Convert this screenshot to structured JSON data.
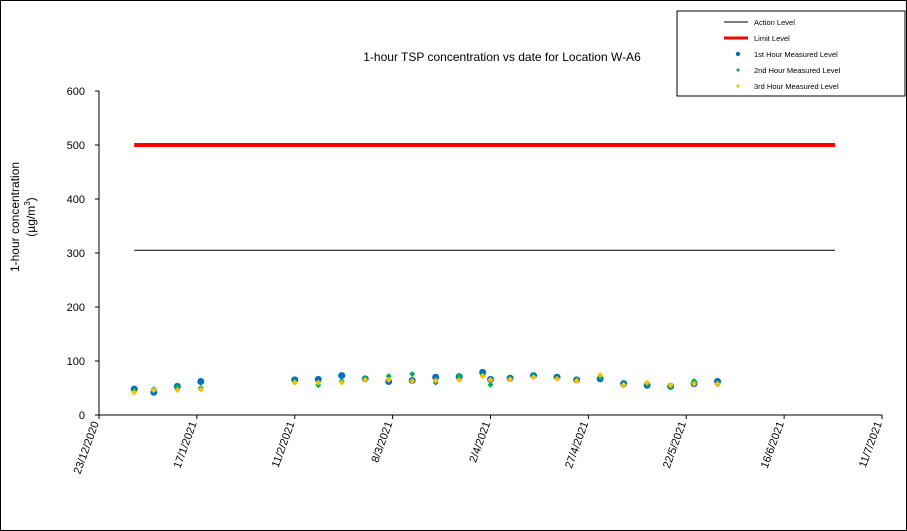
{
  "chart_data": {
    "type": "scatter",
    "title": "1-hour TSP concentration vs date for Location  W-A6",
    "ylabel_line1": "1-hour concentration",
    "ylabel_line2_prefix": "(µg/m",
    "ylabel_line2_sup": "3",
    "ylabel_line2_suffix": ")",
    "ylim": [
      0,
      600
    ],
    "y_ticks": [
      0,
      100,
      200,
      300,
      400,
      500,
      600
    ],
    "y_tick_labels": [
      "0",
      "100",
      "200",
      "300",
      "400",
      "500",
      "600"
    ],
    "x_range": [
      "2020-12-23",
      "2021-07-11"
    ],
    "x_ticks": [
      "2020-12-23",
      "2021-01-17",
      "2021-02-11",
      "2021-03-08",
      "2021-04-02",
      "2021-04-27",
      "2021-05-22",
      "2021-06-16",
      "2021-07-11"
    ],
    "x_tick_labels": [
      "23/12/2020",
      "17/1/2021",
      "11/2/2021",
      "8/3/2021",
      "2/4/2021",
      "27/4/2021",
      "22/5/2021",
      "16/6/2021",
      "11/7/2021"
    ],
    "grid": false,
    "legend_position": "top-right",
    "reference_lines": [
      {
        "name": "Action Level",
        "value": 305,
        "x_start": "2021-01-01",
        "x_end": "2021-06-29",
        "color": "#000000"
      },
      {
        "name": "Limit Level",
        "value": 500,
        "x_start": "2021-01-01",
        "x_end": "2021-06-29",
        "color": "#ff0000"
      }
    ],
    "series": [
      {
        "name": "1st Hour Measured Level",
        "color": "#0070c0",
        "marker": "circle",
        "x": [
          "2021-01-01",
          "2021-01-06",
          "2021-01-12",
          "2021-01-18",
          "2021-02-11",
          "2021-02-17",
          "2021-02-23",
          "2021-03-01",
          "2021-03-07",
          "2021-03-13",
          "2021-03-19",
          "2021-03-25",
          "2021-03-31",
          "2021-04-02",
          "2021-04-07",
          "2021-04-13",
          "2021-04-19",
          "2021-04-24",
          "2021-04-30",
          "2021-05-06",
          "2021-05-12",
          "2021-05-18",
          "2021-05-24",
          "2021-05-30"
        ],
        "y": [
          48,
          42,
          53,
          62,
          65,
          66,
          73,
          67,
          62,
          64,
          70,
          71,
          79,
          66,
          68,
          73,
          70,
          65,
          67,
          58,
          55,
          53,
          58,
          62
        ]
      },
      {
        "name": "2nd Hour Measured Level",
        "color": "#00b050",
        "marker": "diamond",
        "x": [
          "2021-01-01",
          "2021-01-06",
          "2021-01-12",
          "2021-01-18",
          "2021-02-11",
          "2021-02-17",
          "2021-02-23",
          "2021-03-01",
          "2021-03-07",
          "2021-03-13",
          "2021-03-19",
          "2021-03-25",
          "2021-03-31",
          "2021-04-02",
          "2021-04-07",
          "2021-04-13",
          "2021-04-19",
          "2021-04-24",
          "2021-04-30",
          "2021-05-06",
          "2021-05-12",
          "2021-05-18",
          "2021-05-24",
          "2021-05-30"
        ],
        "y": [
          45,
          48,
          52,
          50,
          62,
          55,
          63,
          68,
          72,
          76,
          60,
          72,
          74,
          56,
          67,
          72,
          68,
          65,
          70,
          55,
          57,
          52,
          63,
          57
        ]
      },
      {
        "name": "3rd Hour Measured Level",
        "color": "#ffc000",
        "marker": "diamond",
        "x": [
          "2021-01-01",
          "2021-01-06",
          "2021-01-12",
          "2021-01-18",
          "2021-02-11",
          "2021-02-17",
          "2021-02-23",
          "2021-03-01",
          "2021-03-07",
          "2021-03-13",
          "2021-03-19",
          "2021-03-25",
          "2021-03-31",
          "2021-04-02",
          "2021-04-07",
          "2021-04-13",
          "2021-04-19",
          "2021-04-24",
          "2021-04-30",
          "2021-05-06",
          "2021-05-12",
          "2021-05-18",
          "2021-05-24",
          "2021-05-30"
        ],
        "y": [
          42,
          46,
          46,
          47,
          60,
          60,
          60,
          65,
          65,
          63,
          64,
          65,
          72,
          65,
          66,
          70,
          67,
          63,
          74,
          56,
          60,
          55,
          58,
          58
        ]
      }
    ]
  }
}
